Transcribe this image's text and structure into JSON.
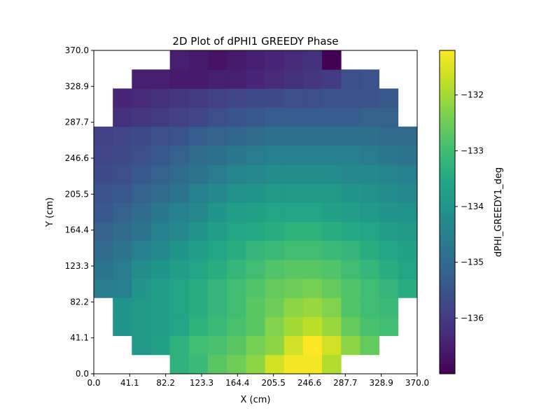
{
  "chart_data": {
    "type": "heatmap",
    "title": "2D Plot of dPHI1 GREEDY Phase",
    "xlabel": "X (cm)",
    "ylabel": "Y (cm)",
    "xlim": [
      0.0,
      370.0
    ],
    "ylim": [
      0.0,
      370.0
    ],
    "x_ticks": [
      "0.0",
      "41.1",
      "82.2",
      "123.3",
      "164.4",
      "205.5",
      "246.6",
      "287.7",
      "328.9",
      "370.0"
    ],
    "y_ticks": [
      "0.0",
      "41.1",
      "82.2",
      "123.3",
      "164.4",
      "205.5",
      "246.6",
      "287.7",
      "328.9",
      "370.0"
    ],
    "colorbar": {
      "label": "dPHI_GREEDY1_deg",
      "colormap": "viridis",
      "vmin": -137.0,
      "vmax": -131.2,
      "ticks": [
        -132,
        -133,
        -134,
        -135,
        -136
      ],
      "tick_labels": [
        "−132",
        "−133",
        "−134",
        "−135",
        "−136"
      ]
    },
    "grid": {
      "nx": 17,
      "ny": 17,
      "cell_size": 21.76
    },
    "cells": [
      [
        0,
        [
          4,
          12
        ]
      ],
      [
        1,
        [
          2,
          14
        ]
      ],
      [
        2,
        [
          1,
          15
        ]
      ],
      [
        3,
        [
          1,
          15
        ]
      ],
      [
        4,
        [
          0,
          16
        ]
      ],
      [
        5,
        [
          0,
          16
        ]
      ],
      [
        6,
        [
          0,
          16
        ]
      ],
      [
        7,
        [
          0,
          16
        ]
      ],
      [
        8,
        [
          0,
          16
        ]
      ],
      [
        9,
        [
          0,
          16
        ]
      ],
      [
        10,
        [
          0,
          16
        ]
      ],
      [
        11,
        [
          0,
          16
        ]
      ],
      [
        12,
        [
          0,
          16
        ]
      ],
      [
        13,
        [
          1,
          15
        ]
      ],
      [
        14,
        [
          1,
          15
        ]
      ],
      [
        15,
        [
          2,
          14
        ]
      ],
      [
        16,
        [
          4,
          12
        ]
      ]
    ],
    "values_by_row": [
      [
        -133.3,
        -133.1,
        -132.7,
        -132.5,
        -132.2,
        -131.6,
        -131.3,
        -131.3,
        -131.9
      ],
      [
        -133.9,
        -133.7,
        -133.3,
        -133.0,
        -132.9,
        -132.7,
        -132.4,
        -132.2,
        -131.6,
        -131.2,
        -131.6,
        -132.2,
        -132.6
      ],
      [
        -134.0,
        -133.9,
        -133.8,
        -133.6,
        -133.3,
        -133.1,
        -132.9,
        -132.7,
        -132.3,
        -132.0,
        -131.8,
        -132.1,
        -132.6,
        -132.9,
        -133.0
      ],
      [
        -134.0,
        -133.9,
        -133.8,
        -133.6,
        -133.4,
        -133.2,
        -133.0,
        -132.7,
        -132.5,
        -132.2,
        -132.1,
        -132.3,
        -132.8,
        -133.0,
        -133.1
      ],
      [
        -134.6,
        -134.5,
        -134.0,
        -133.8,
        -133.6,
        -133.4,
        -133.2,
        -133.0,
        -132.8,
        -132.6,
        -132.5,
        -132.4,
        -132.6,
        -132.8,
        -133.0,
        -133.2,
        -133.4
      ],
      [
        -134.8,
        -134.6,
        -134.2,
        -134.0,
        -133.8,
        -133.6,
        -133.4,
        -133.2,
        -133.0,
        -132.8,
        -132.7,
        -132.7,
        -132.8,
        -133.0,
        -133.2,
        -133.4,
        -133.6
      ],
      [
        -135.0,
        -134.8,
        -134.5,
        -134.3,
        -134.0,
        -133.8,
        -133.6,
        -133.4,
        -133.2,
        -133.1,
        -133.0,
        -133.0,
        -133.1,
        -133.2,
        -133.4,
        -133.6,
        -133.7
      ],
      [
        -135.2,
        -135.0,
        -134.8,
        -134.5,
        -134.3,
        -134.0,
        -133.8,
        -133.6,
        -133.5,
        -133.4,
        -133.3,
        -133.3,
        -133.4,
        -133.5,
        -133.6,
        -133.8,
        -133.9
      ],
      [
        -135.4,
        -135.2,
        -135.0,
        -134.7,
        -134.5,
        -134.3,
        -134.0,
        -133.8,
        -133.7,
        -133.6,
        -133.6,
        -133.6,
        -133.7,
        -133.8,
        -133.9,
        -134.0,
        -134.1
      ],
      [
        -135.5,
        -135.4,
        -135.2,
        -135.0,
        -134.8,
        -134.5,
        -134.3,
        -134.1,
        -134.0,
        -133.9,
        -133.9,
        -133.9,
        -133.9,
        -134.0,
        -134.1,
        -134.2,
        -134.3
      ],
      [
        -135.7,
        -135.6,
        -135.4,
        -135.2,
        -135.0,
        -134.8,
        -134.6,
        -134.4,
        -134.3,
        -134.2,
        -134.2,
        -134.2,
        -134.2,
        -134.3,
        -134.3,
        -134.4,
        -134.5
      ],
      [
        -135.8,
        -135.7,
        -135.6,
        -135.4,
        -135.2,
        -135.0,
        -134.9,
        -134.7,
        -134.6,
        -134.5,
        -134.5,
        -134.5,
        -134.5,
        -134.5,
        -134.6,
        -134.7,
        -134.8
      ],
      [
        -135.9,
        -135.8,
        -135.7,
        -135.6,
        -135.5,
        -135.3,
        -135.2,
        -135.1,
        -135.0,
        -134.9,
        -134.9,
        -134.9,
        -134.9,
        -134.9,
        -134.9,
        -135.0,
        -135.0
      ],
      [
        -136.2,
        -136.1,
        -136.0,
        -135.9,
        -135.8,
        -135.6,
        -135.5,
        -135.4,
        -135.3,
        -135.3,
        -135.3,
        -135.3,
        -135.3,
        -135.2,
        -135.2
      ],
      [
        -136.4,
        -136.3,
        -136.2,
        -136.1,
        -136.0,
        -135.9,
        -135.8,
        -135.7,
        -135.7,
        -135.6,
        -135.6,
        -135.5,
        -135.5,
        -135.5,
        -135.4
      ],
      [
        -136.5,
        -136.5,
        -136.6,
        -136.6,
        -136.5,
        -136.5,
        -136.4,
        -136.3,
        -136.2,
        -136.1,
        -136.0,
        -135.6,
        -135.5
      ],
      [
        -136.5,
        -136.6,
        -136.7,
        -136.6,
        -136.5,
        -136.4,
        -136.3,
        -136.2,
        -137.0
      ]
    ]
  }
}
